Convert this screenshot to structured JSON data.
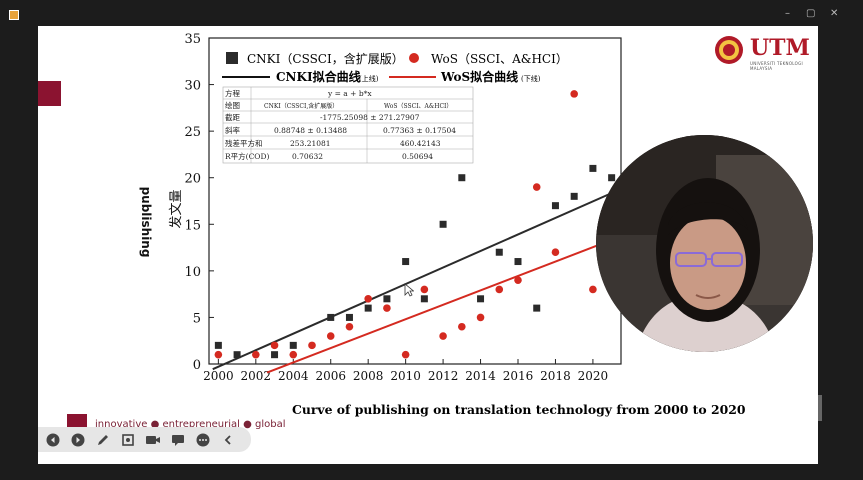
{
  "window": {
    "controls": [
      "–",
      "▢",
      "✕"
    ]
  },
  "logo": {
    "text": "UTM",
    "subtext": "UNIVERSITI TEKNOLOGI MALAYSIA"
  },
  "side_label": "publishing",
  "caption": "Curve of publishing on translation technology  from 2000 to 2020",
  "tagline": "innovative ● entrepreneurial ● global",
  "toolbar": {
    "icons": [
      "prev-icon",
      "next-icon",
      "pen-icon",
      "zoom-icon",
      "camera-icon",
      "subtitle-icon",
      "more-icon",
      "collapse-icon"
    ]
  },
  "colors": {
    "brand": "#8b1330",
    "cnki": "#2b2b2b",
    "wos": "#d42a20"
  },
  "chart_data": {
    "type": "scatter",
    "ylabel": "发文量",
    "xlim": [
      1999.5,
      2021.5
    ],
    "ylim": [
      0,
      35
    ],
    "x_ticks": [
      2000,
      2002,
      2004,
      2006,
      2008,
      2010,
      2012,
      2014,
      2016,
      2018,
      2020
    ],
    "y_ticks": [
      0,
      5,
      10,
      15,
      20,
      25,
      30,
      35
    ],
    "legend": [
      {
        "label": "CNKI（CSSCI，含扩展版）",
        "kind": "square"
      },
      {
        "label": "WoS（SSCI、A&HCI）",
        "kind": "circle"
      },
      {
        "label": "CNKI拟合曲线",
        "note": "(上线)",
        "kind": "line-black"
      },
      {
        "label": "WoS拟合曲线",
        "note": "(下线)",
        "kind": "line-red"
      }
    ],
    "series": [
      {
        "name": "CNKI（CSSCI，含扩展版）",
        "x": [
          2000,
          2001,
          2003,
          2004,
          2006,
          2007,
          2008,
          2009,
          2010,
          2011,
          2012,
          2013,
          2014,
          2015,
          2016,
          2017,
          2018,
          2019,
          2020,
          2021
        ],
        "y": [
          2,
          1,
          1,
          2,
          5,
          5,
          6,
          7,
          11,
          7,
          15,
          20,
          7,
          12,
          11,
          6,
          17,
          18,
          21,
          20
        ]
      },
      {
        "name": "WoS（SSCI、A&HCI）",
        "x": [
          2000,
          2002,
          2003,
          2004,
          2005,
          2006,
          2007,
          2008,
          2009,
          2010,
          2011,
          2012,
          2013,
          2014,
          2015,
          2016,
          2017,
          2018,
          2019,
          2020
        ],
        "y": [
          1,
          1,
          2,
          1,
          2,
          3,
          4,
          7,
          6,
          1,
          8,
          3,
          4,
          5,
          8,
          9,
          19,
          12,
          29,
          8
        ]
      }
    ],
    "fits": [
      {
        "name": "CNKI拟合曲线",
        "intercept": -1775.25098,
        "slope": 0.88748
      },
      {
        "name": "WoS拟合曲线",
        "intercept": -1550.19,
        "slope": 0.77363
      }
    ],
    "stats_table": {
      "header": [
        "方程",
        "y = a + b*x",
        ""
      ],
      "rows": [
        [
          "绘图",
          "CNKI（CSSCI,含扩展版）",
          "WoS（SSCI、A&HCI）"
        ],
        [
          "截距",
          "-1775.25098 ± 271.27907",
          ""
        ],
        [
          "斜率",
          "0.88748 ± 0.13488",
          "0.77363 ± 0.17504"
        ],
        [
          "残差平方和",
          "253.21081",
          "460.42143"
        ],
        [
          "R平方(COD)",
          "0.70632",
          "0.50694"
        ]
      ]
    }
  }
}
